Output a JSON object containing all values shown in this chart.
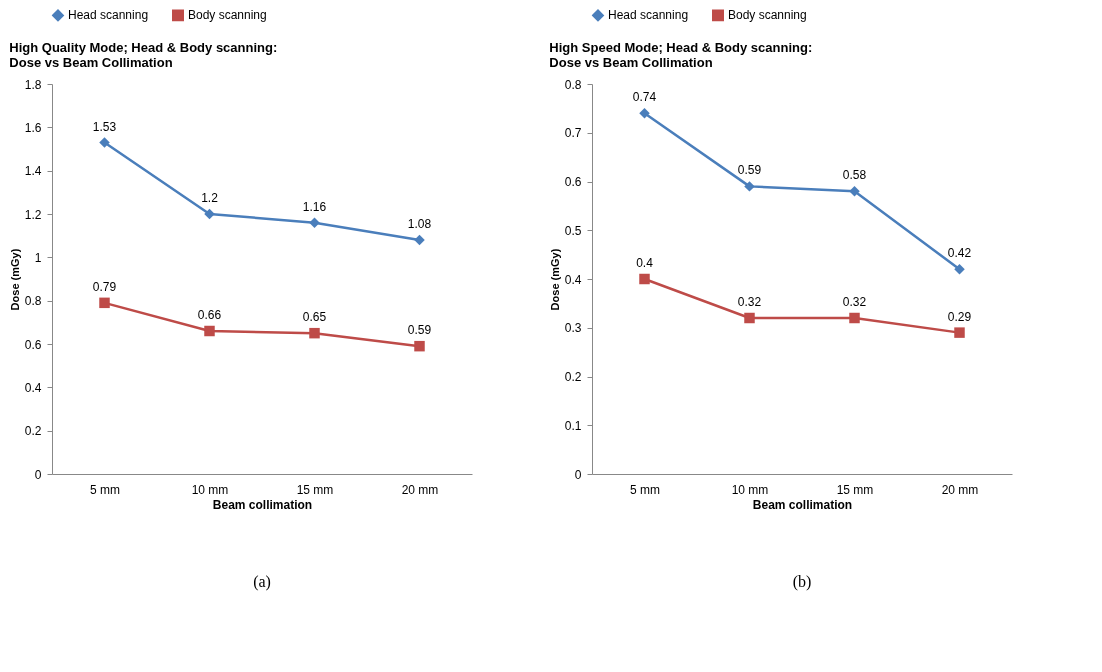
{
  "chart_data": [
    {
      "type": "line",
      "title": "High Quality Mode; Head & Body scanning:\nDose vs Beam Collimation",
      "xlabel": "Beam collimation",
      "ylabel": "Dose (mGy)",
      "categories": [
        "5 mm",
        "10 mm",
        "15 mm",
        "20 mm"
      ],
      "series": [
        {
          "name": "Head scanning",
          "color": "#4a7ebb",
          "marker": "diamond",
          "values": [
            1.53,
            1.2,
            1.16,
            1.08
          ]
        },
        {
          "name": "Body scanning",
          "color": "#be4b48",
          "marker": "square",
          "values": [
            0.79,
            0.66,
            0.65,
            0.59
          ]
        }
      ],
      "ylim": [
        0,
        1.8
      ],
      "yticks": [
        0,
        0.2,
        0.4,
        0.6,
        0.8,
        1,
        1.2,
        1.4,
        1.6,
        1.8
      ],
      "grid": false,
      "legend": "top",
      "data_labels": true,
      "annotations": [
        "(a)"
      ]
    },
    {
      "type": "line",
      "title": "High Speed Mode; Head & Body scanning:\nDose vs Beam Collimation",
      "xlabel": "Beam collimation",
      "ylabel": "Dose (mGy)",
      "categories": [
        "5 mm",
        "10 mm",
        "15 mm",
        "20 mm"
      ],
      "series": [
        {
          "name": "Head scanning",
          "color": "#4a7ebb",
          "marker": "diamond",
          "values": [
            0.74,
            0.59,
            0.58,
            0.42
          ]
        },
        {
          "name": "Body scanning",
          "color": "#be4b48",
          "marker": "square",
          "values": [
            0.4,
            0.32,
            0.32,
            0.29
          ]
        }
      ],
      "ylim": [
        0,
        0.8
      ],
      "yticks": [
        0,
        0.1,
        0.2,
        0.3,
        0.4,
        0.5,
        0.6,
        0.7,
        0.8
      ],
      "grid": false,
      "legend": "top",
      "data_labels": true,
      "annotations": [
        "(b)"
      ]
    }
  ]
}
